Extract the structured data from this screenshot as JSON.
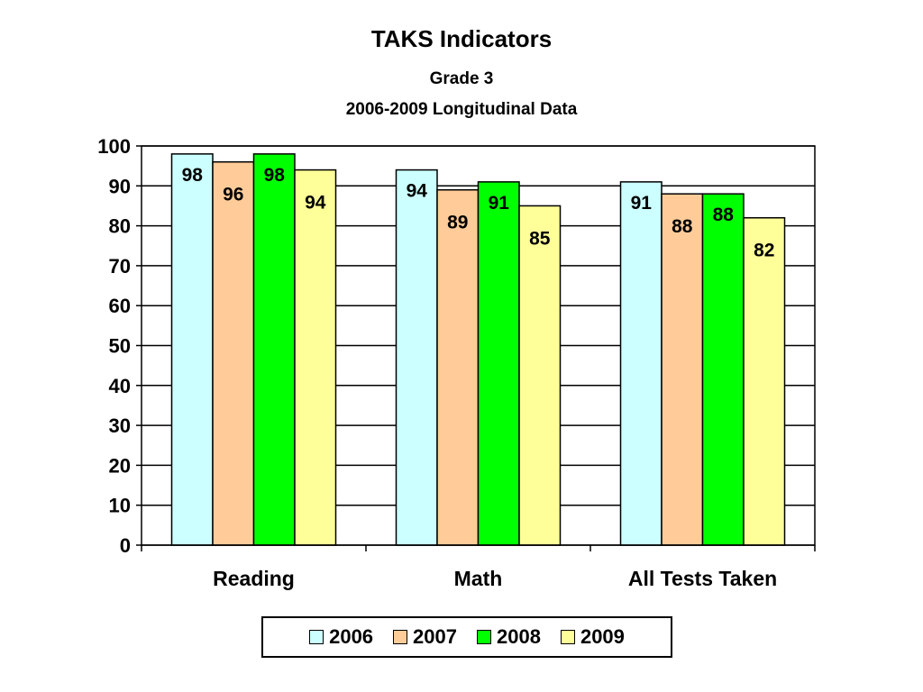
{
  "title": "TAKS Indicators",
  "subtitle1": "Grade 3",
  "subtitle2": "2006-2009 Longitudinal Data",
  "chart_data": {
    "type": "bar",
    "categories": [
      "Reading",
      "Math",
      "All Tests Taken"
    ],
    "series": [
      {
        "name": "2006",
        "values": [
          98,
          94,
          91
        ],
        "color": "#CCFFFF"
      },
      {
        "name": "2007",
        "values": [
          96,
          89,
          88
        ],
        "color": "#FFCC99"
      },
      {
        "name": "2008",
        "values": [
          98,
          91,
          88
        ],
        "color": "#00FF00"
      },
      {
        "name": "2009",
        "values": [
          94,
          85,
          82
        ],
        "color": "#FFFF99"
      }
    ],
    "yticks": [
      0,
      10,
      20,
      30,
      40,
      50,
      60,
      70,
      80,
      90,
      100
    ],
    "ylim": [
      0,
      100
    ],
    "grid": true,
    "legend_position": "bottom"
  }
}
